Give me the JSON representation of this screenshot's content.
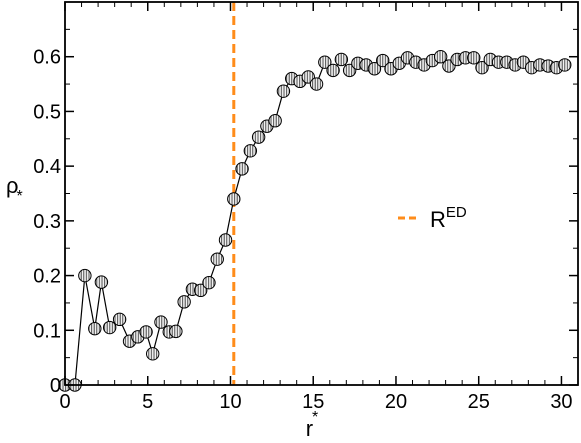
{
  "chart_data": {
    "type": "scatter",
    "xlabel": "r",
    "xlabel_sub": "*",
    "ylabel": "ρ",
    "ylabel_sub": "*",
    "xlim": [
      0,
      31
    ],
    "ylim": [
      0,
      0.7
    ],
    "xticks": [
      "0",
      "5",
      "10",
      "15",
      "20",
      "25",
      "30"
    ],
    "yticks": [
      "0",
      "0.1",
      "0.2",
      "0.3",
      "0.4",
      "0.5",
      "0.6"
    ],
    "grid": false,
    "legend_position": "center-right",
    "colors": {
      "series": "#000000",
      "marker_fill": "#d8d8d8",
      "vline": "#ff8c1a"
    },
    "series": [
      {
        "marker": "circle-hatched",
        "x": [
          0.0,
          0.6,
          1.2,
          1.8,
          2.2,
          2.7,
          3.3,
          3.9,
          4.4,
          4.9,
          5.3,
          5.8,
          6.3,
          6.7,
          7.2,
          7.7,
          8.2,
          8.7,
          9.2,
          9.7,
          10.2,
          10.7,
          11.2,
          11.7,
          12.2,
          12.7,
          13.2,
          13.7,
          14.2,
          14.7,
          15.2,
          15.7,
          16.2,
          16.7,
          17.2,
          17.7,
          18.2,
          18.7,
          19.2,
          19.7,
          20.2,
          20.7,
          21.2,
          21.7,
          22.2,
          22.7,
          23.2,
          23.7,
          24.2,
          24.7,
          25.2,
          25.7,
          26.2,
          26.7,
          27.2,
          27.7,
          28.2,
          28.7,
          29.2,
          29.7,
          30.2
        ],
        "y": [
          0.0,
          0.0,
          0.2,
          0.103,
          0.188,
          0.105,
          0.12,
          0.08,
          0.088,
          0.097,
          0.057,
          0.115,
          0.097,
          0.098,
          0.152,
          0.175,
          0.173,
          0.187,
          0.23,
          0.265,
          0.34,
          0.395,
          0.428,
          0.453,
          0.473,
          0.483,
          0.537,
          0.56,
          0.555,
          0.563,
          0.55,
          0.59,
          0.575,
          0.595,
          0.575,
          0.588,
          0.585,
          0.578,
          0.593,
          0.578,
          0.588,
          0.598,
          0.59,
          0.585,
          0.593,
          0.6,
          0.583,
          0.595,
          0.598,
          0.598,
          0.58,
          0.595,
          0.59,
          0.59,
          0.585,
          0.59,
          0.58,
          0.585,
          0.583,
          0.58,
          0.585
        ]
      }
    ],
    "vline": {
      "x": 10.2,
      "label": "R",
      "label_sup": "ED"
    }
  }
}
